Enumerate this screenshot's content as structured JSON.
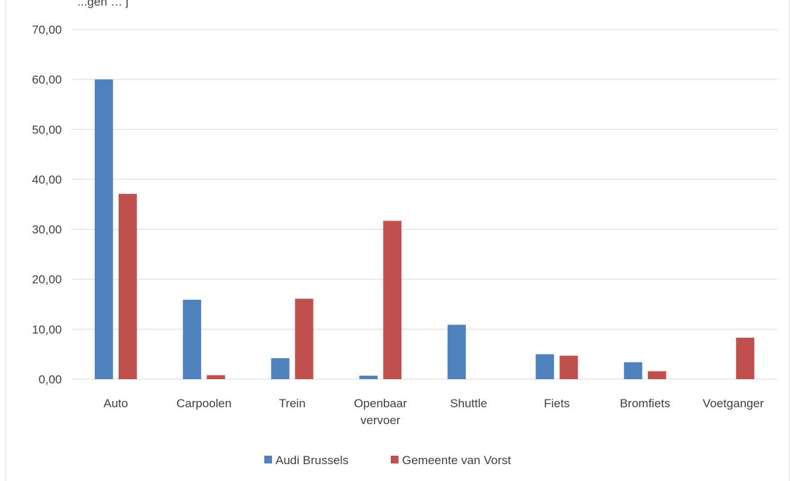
{
  "header_fragment": "...gen … j",
  "colors": {
    "series_1": "#4F81BD",
    "series_2": "#C0504D",
    "gridline": "#D9D9D9",
    "text": "#404040",
    "frame": "#D9D9D9"
  },
  "chart_data": {
    "type": "bar",
    "categories": [
      "Auto",
      "Carpoolen",
      "Trein",
      "Openbaar vervoer",
      "Shuttle",
      "Fiets",
      "Bromfiets",
      "Voetganger"
    ],
    "category_lines": [
      [
        "Auto"
      ],
      [
        "Carpoolen"
      ],
      [
        "Trein"
      ],
      [
        "Openbaar",
        "vervoer"
      ],
      [
        "Shuttle"
      ],
      [
        "Fiets"
      ],
      [
        "Bromfiets"
      ],
      [
        "Voetganger"
      ]
    ],
    "series": [
      {
        "name": "Audi Brussels",
        "values": [
          60.0,
          15.9,
          4.2,
          0.7,
          10.9,
          5.0,
          3.4,
          0.0
        ]
      },
      {
        "name": "Gemeente van Vorst",
        "values": [
          37.1,
          0.8,
          16.1,
          31.7,
          0.0,
          4.7,
          1.6,
          8.3
        ]
      }
    ],
    "ylim": [
      0,
      70
    ],
    "yticks": [
      "0,00",
      "10,00",
      "20,00",
      "30,00",
      "40,00",
      "50,00",
      "60,00",
      "70,00"
    ],
    "grid": true,
    "legend": "bottom"
  }
}
